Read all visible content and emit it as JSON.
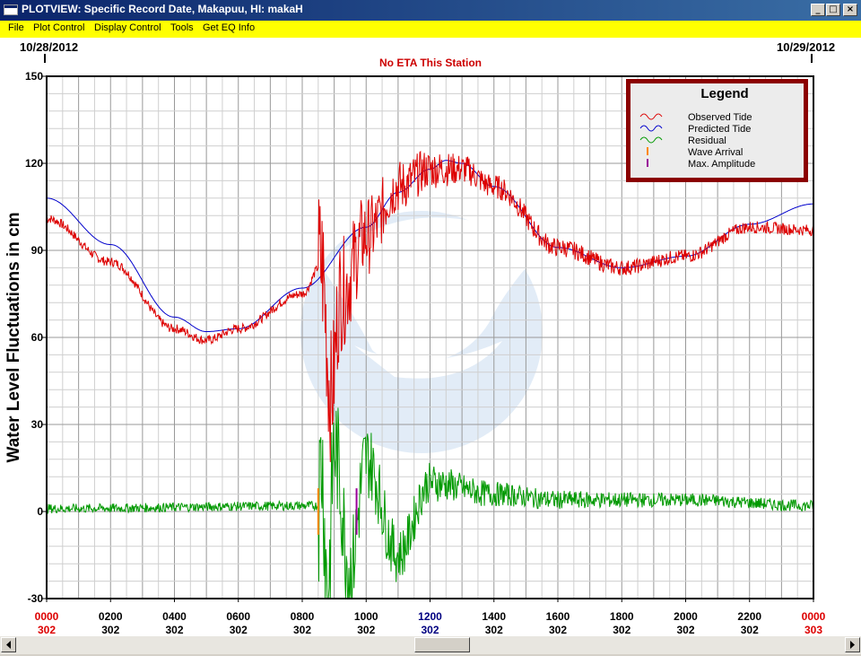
{
  "window": {
    "title": "PLOTVIEW: Specific Record Date, Makapuu, HI: makaH",
    "controls": [
      "minimize",
      "maximize",
      "close"
    ]
  },
  "menu": {
    "items": [
      "File",
      "Plot Control",
      "Display Control",
      "Tools",
      "Get EQ Info"
    ]
  },
  "plot": {
    "date_left": "10/28/2012",
    "date_right": "10/29/2012",
    "eta_note": "No ETA This Station",
    "eta_color": "#cc0000",
    "watermark": "West Coast and Alaska Tsunami Warning Center"
  },
  "legend": {
    "title": "Legend",
    "items": [
      {
        "label": "Observed Tide",
        "color": "#dd0000",
        "icon": "wave-red"
      },
      {
        "label": "Predicted Tide",
        "color": "#0000cc",
        "icon": "wave-blue"
      },
      {
        "label": "Residual",
        "color": "#009900",
        "icon": "wave-green"
      },
      {
        "label": "Wave Arrival",
        "color": "#ff8800",
        "icon": "tick-orange"
      },
      {
        "label": "Max. Amplitude",
        "color": "#990099",
        "icon": "tick-purple"
      }
    ]
  },
  "chart_data": {
    "type": "line",
    "ylabel": "Water Level Fluctuations in cm",
    "xlabel": "",
    "ylim": [
      -30,
      150
    ],
    "xlim_hours": [
      0,
      24
    ],
    "grid": true,
    "y_ticks": [
      "150",
      "120",
      "90",
      "60",
      "30",
      "0",
      "-30"
    ],
    "x_ticks": [
      {
        "time": "0000",
        "day": "302",
        "color": "#dd0000"
      },
      {
        "time": "0200",
        "day": "302",
        "color": "#000000"
      },
      {
        "time": "0400",
        "day": "302",
        "color": "#000000"
      },
      {
        "time": "0600",
        "day": "302",
        "color": "#000000"
      },
      {
        "time": "0800",
        "day": "302",
        "color": "#000000"
      },
      {
        "time": "1000",
        "day": "302",
        "color": "#000000"
      },
      {
        "time": "1200",
        "day": "302",
        "color": "#000080"
      },
      {
        "time": "1400",
        "day": "302",
        "color": "#000000"
      },
      {
        "time": "1600",
        "day": "302",
        "color": "#000000"
      },
      {
        "time": "1800",
        "day": "302",
        "color": "#000000"
      },
      {
        "time": "2000",
        "day": "302",
        "color": "#000000"
      },
      {
        "time": "2200",
        "day": "302",
        "color": "#000000"
      },
      {
        "time": "0000",
        "day": "303",
        "color": "#dd0000"
      }
    ],
    "series": [
      {
        "name": "Predicted Tide",
        "color": "#0000cc",
        "x_hours": [
          0,
          2,
          4,
          5,
          6,
          8,
          10,
          11,
          12,
          12.5,
          13,
          14,
          16,
          18,
          20,
          22,
          24
        ],
        "y": [
          108,
          92,
          67,
          62,
          63,
          77,
          98,
          110,
          118,
          121,
          120,
          112,
          91,
          84,
          88,
          99,
          106
        ]
      },
      {
        "name": "Observed Tide",
        "color": "#dd0000",
        "x_hours": [
          0,
          2,
          4,
          5,
          6,
          8,
          8.6,
          8.9,
          9.2,
          10,
          11,
          12,
          13,
          14,
          16,
          18,
          20,
          22,
          24
        ],
        "y": [
          101,
          86,
          63,
          59,
          63,
          75,
          85,
          40,
          75,
          95,
          112,
          118,
          118,
          112,
          91,
          84,
          88,
          98,
          97
        ]
      },
      {
        "name": "Residual",
        "color": "#009900",
        "x_hours": [
          0,
          8.5,
          8.6,
          8.8,
          9.0,
          9.5,
          10,
          11,
          12,
          14,
          16,
          20,
          24
        ],
        "y": [
          1,
          2,
          18,
          -28,
          22,
          -20,
          18,
          -15,
          10,
          6,
          4,
          4,
          2
        ]
      }
    ],
    "markers": [
      {
        "name": "Wave Arrival",
        "x_hours": 8.5,
        "color": "#ff8800"
      },
      {
        "name": "Max. Amplitude",
        "x_hours": 9.7,
        "color": "#990099"
      }
    ]
  }
}
